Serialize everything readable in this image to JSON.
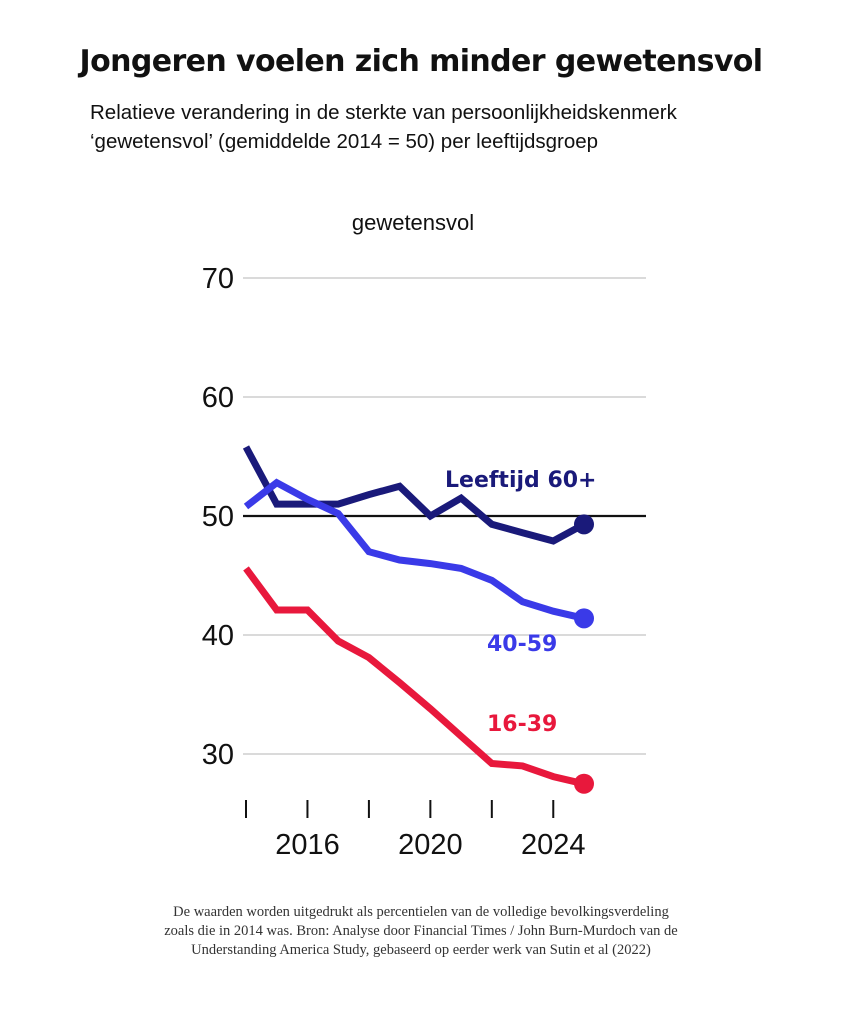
{
  "header": {
    "title": "Jongeren voelen zich minder gewetensvol",
    "subtitle_line1": "Relatieve verandering in de sterkte van persoonlijkheidskenmerk",
    "subtitle_line2": "‘gewetensvol’ (gemiddelde 2014 = 50) per leeftijdsgroep"
  },
  "footnote": {
    "line1": "De waarden worden uitgedrukt als percentielen van de volledige bevolkingsverdeling",
    "line2": "zoals die in 2014 was. Bron: Analyse door Financial Times / John Burn-Murdoch van de",
    "line3": "Understanding America Study, gebaseerd op eerder werk van Sutin et al (2022)"
  },
  "chart_data": {
    "type": "line",
    "title": "Jongeren voelen zich minder gewetensvol",
    "ylabel": "gewetensvol",
    "xlabel": "",
    "ylim": [
      27,
      70
    ],
    "xlim": [
      2014,
      2025
    ],
    "yticks": [
      30,
      40,
      50,
      60,
      70
    ],
    "xticks_minor": [
      2014,
      2016,
      2018,
      2020,
      2022,
      2024
    ],
    "xtick_labels": [
      {
        "value": 2016,
        "label": "2016"
      },
      {
        "value": 2020,
        "label": "2020"
      },
      {
        "value": 2024,
        "label": "2024"
      }
    ],
    "reference_line": 50,
    "grid": true,
    "series": [
      {
        "name": "Leeftijd 60+",
        "color": "#1a1a7a",
        "x": [
          2014,
          2015,
          2016,
          2017,
          2018,
          2019,
          2020,
          2021,
          2022,
          2023,
          2024,
          2025
        ],
        "values": [
          55.8,
          51,
          51,
          51,
          51.8,
          52.5,
          50,
          51.5,
          49.3,
          48.6,
          47.9,
          49.3
        ]
      },
      {
        "name": "40-59",
        "color": "#3a3ae8",
        "x": [
          2014,
          2015,
          2016,
          2017,
          2018,
          2019,
          2020,
          2021,
          2022,
          2023,
          2024,
          2025
        ],
        "values": [
          50.8,
          52.8,
          51.4,
          50.2,
          47,
          46.3,
          46,
          45.6,
          44.6,
          42.8,
          42,
          41.4
        ]
      },
      {
        "name": "16-39",
        "color": "#e8183c",
        "x": [
          2014,
          2015,
          2016,
          2017,
          2018,
          2019,
          2020,
          2021,
          2022,
          2023,
          2024,
          2025
        ],
        "values": [
          45.6,
          42.1,
          42.1,
          39.5,
          38.1,
          36,
          33.8,
          31.5,
          29.2,
          29,
          28.1,
          27.5
        ]
      }
    ]
  }
}
